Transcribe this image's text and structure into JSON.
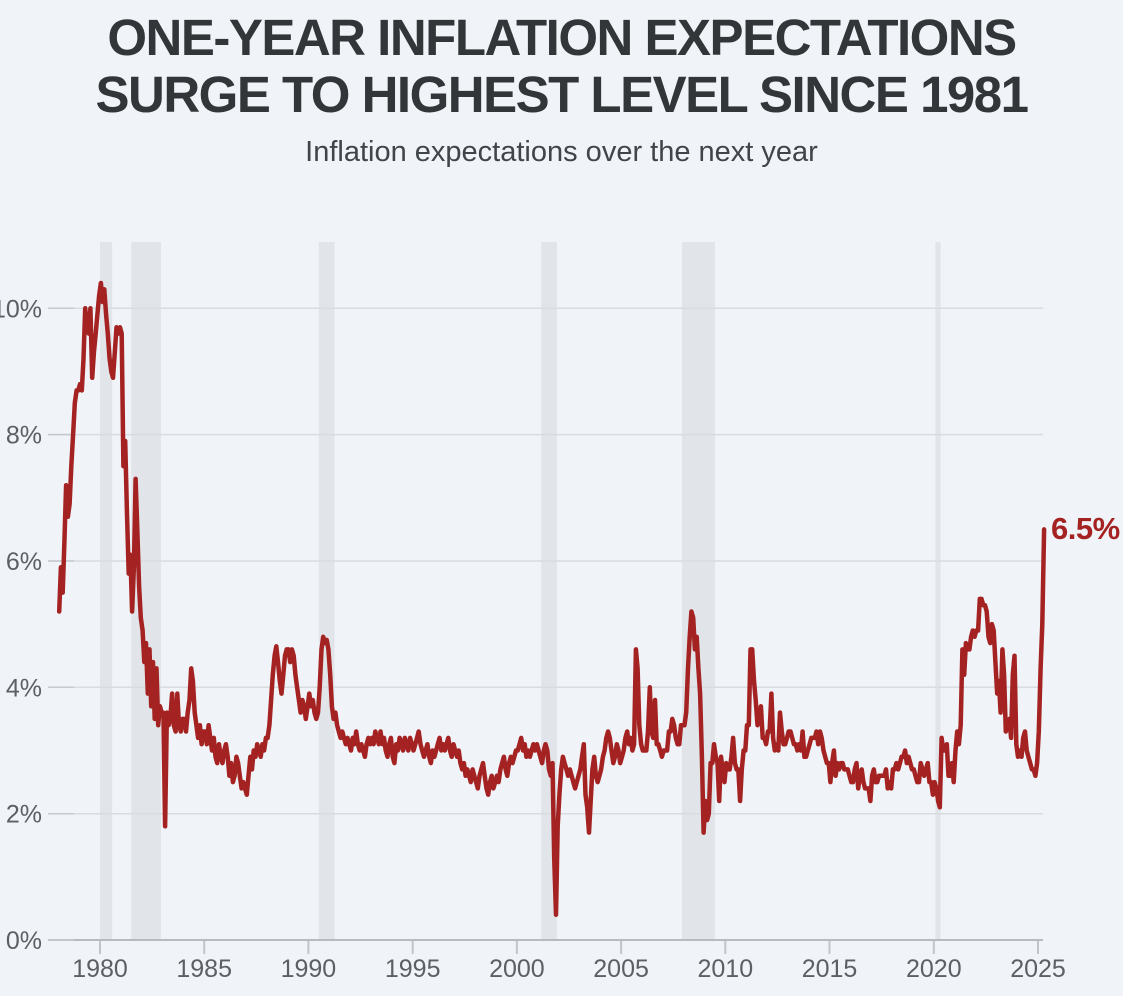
{
  "header": {
    "title_line1": "ONE-YEAR INFLATION EXPECTATIONS",
    "title_line2": "SURGE TO HIGHEST LEVEL SINCE 1981",
    "subtitle": "Inflation expectations over the next year"
  },
  "colors": {
    "background": "#f0f3f7",
    "line": "#a42322",
    "recession_band": "#e1e4e8",
    "gridline": "#d9dcdf",
    "gridline_tick": "#c6c9cc",
    "axis_line": "#b8bbbe",
    "axis_tick": "#c2c5c8",
    "axis_label": "#5c6064",
    "title_text": "#333639",
    "annotation": "#a42322"
  },
  "chart_data": {
    "type": "line",
    "title": "Inflation expectations over the next year",
    "series_name": "One-year inflation expectations",
    "unit": "percent",
    "frequency": "monthly",
    "grid": "horizontal",
    "legend": "none",
    "x_domain": [
      1977.5,
      2025.6
    ],
    "y_domain": [
      0,
      11.05
    ],
    "y_ticks": [
      {
        "value": 0,
        "label": "0%"
      },
      {
        "value": 2,
        "label": "2%"
      },
      {
        "value": 4,
        "label": "4%"
      },
      {
        "value": 6,
        "label": "6%"
      },
      {
        "value": 8,
        "label": "8%"
      },
      {
        "value": 10,
        "label": "10%"
      }
    ],
    "x_ticks": [
      {
        "value": 1980,
        "label": "1980"
      },
      {
        "value": 1985,
        "label": "1985"
      },
      {
        "value": 1990,
        "label": "1990"
      },
      {
        "value": 1995,
        "label": "1995"
      },
      {
        "value": 2000,
        "label": "2000"
      },
      {
        "value": 2005,
        "label": "2005"
      },
      {
        "value": 2010,
        "label": "2010"
      },
      {
        "value": 2015,
        "label": "2015"
      },
      {
        "value": 2020,
        "label": "2020"
      },
      {
        "value": 2025,
        "label": "2025"
      }
    ],
    "recessions": [
      [
        1980.0,
        1980.58
      ],
      [
        1981.5,
        1982.92
      ],
      [
        1990.5,
        1991.25
      ],
      [
        2001.17,
        2001.92
      ],
      [
        2007.92,
        2009.5
      ],
      [
        2020.08,
        2020.33
      ]
    ],
    "end_annotation": {
      "label": "6.5%",
      "value": 6.5,
      "x": 2025.29
    },
    "start_year": 1978,
    "values_by_year": {
      "1978": [
        5.2,
        5.9,
        5.5,
        6.3,
        7.2,
        6.7,
        6.9,
        7.5,
        8.0,
        8.5,
        8.7,
        8.7
      ],
      "1979": [
        8.8,
        8.7,
        9.2,
        10.0,
        9.7,
        9.6,
        10.0,
        8.9,
        9.3,
        9.6,
        9.9,
        10.2
      ],
      "1980": [
        10.4,
        10.1,
        10.3,
        9.9,
        9.6,
        9.2,
        9.0,
        8.9,
        9.3,
        9.7,
        9.6,
        9.7
      ],
      "1981": [
        9.6,
        7.5,
        7.9,
        6.8,
        5.8,
        6.1,
        5.2,
        5.9,
        7.3,
        6.5,
        5.6,
        5.1
      ],
      "1982": [
        4.9,
        4.4,
        4.7,
        3.9,
        4.6,
        3.7,
        4.4,
        3.5,
        4.3,
        3.4,
        3.7,
        3.6
      ],
      "1983": [
        3.6,
        1.8,
        3.6,
        3.4,
        3.5,
        3.9,
        3.4,
        3.3,
        3.9,
        3.4,
        3.3,
        3.5
      ],
      "1984": [
        3.5,
        3.3,
        3.6,
        3.8,
        4.3,
        4.1,
        3.6,
        3.4,
        3.2,
        3.4,
        3.1,
        3.3
      ],
      "1985": [
        3.3,
        3.1,
        3.4,
        3.2,
        3.0,
        3.2,
        2.9,
        2.8,
        3.1,
        2.9,
        2.8,
        3.0
      ],
      "1986": [
        3.1,
        2.9,
        2.6,
        2.8,
        2.5,
        2.6,
        2.9,
        2.8,
        2.6,
        2.4,
        2.5,
        2.4
      ],
      "1987": [
        2.3,
        2.6,
        2.9,
        2.7,
        3.0,
        2.9,
        3.1,
        3.0,
        2.9,
        3.1,
        3.0,
        3.2
      ],
      "1988": [
        3.2,
        3.4,
        3.8,
        4.2,
        4.5,
        4.65,
        4.4,
        4.1,
        3.9,
        4.2,
        4.5,
        4.6
      ],
      "1989": [
        4.6,
        4.4,
        4.6,
        4.5,
        4.2,
        4.0,
        3.8,
        3.6,
        3.8,
        3.7,
        3.5,
        3.7
      ],
      "1990": [
        3.9,
        3.7,
        3.8,
        3.6,
        3.5,
        3.6,
        4.0,
        4.6,
        4.8,
        4.7,
        4.75,
        4.6
      ],
      "1991": [
        4.2,
        3.7,
        3.5,
        3.6,
        3.4,
        3.3,
        3.2,
        3.3,
        3.2,
        3.1,
        3.2,
        3.1
      ],
      "1992": [
        3.0,
        3.2,
        3.1,
        3.3,
        3.1,
        3.0,
        3.1,
        3.0,
        2.9,
        3.1,
        3.2,
        3.1
      ],
      "1993": [
        3.2,
        3.1,
        3.3,
        3.2,
        3.1,
        3.3,
        3.1,
        3.2,
        3.0,
        2.9,
        3.1,
        3.2
      ],
      "1994": [
        2.9,
        2.8,
        3.1,
        3.0,
        3.2,
        3.1,
        3.0,
        3.2,
        3.1,
        3.0,
        3.2,
        3.1
      ],
      "1995": [
        3.0,
        3.1,
        3.2,
        3.3,
        3.1,
        3.0,
        2.9,
        3.0,
        3.1,
        2.9,
        2.8,
        3.0
      ],
      "1996": [
        2.9,
        3.0,
        3.1,
        3.2,
        3.0,
        3.1,
        3.0,
        3.1,
        3.2,
        3.0,
        2.9,
        3.1
      ],
      "1997": [
        3.0,
        2.9,
        3.0,
        2.8,
        2.7,
        2.8,
        2.6,
        2.7,
        2.6,
        2.5,
        2.7,
        2.6
      ],
      "1998": [
        2.5,
        2.4,
        2.6,
        2.7,
        2.8,
        2.6,
        2.4,
        2.3,
        2.5,
        2.6,
        2.4,
        2.5
      ],
      "1999": [
        2.6,
        2.5,
        2.7,
        2.8,
        2.9,
        2.7,
        2.6,
        2.8,
        2.9,
        2.8,
        2.9,
        3.0
      ],
      "2000": [
        3.0,
        3.1,
        3.2,
        3.0,
        3.1,
        2.9,
        3.0,
        2.9,
        3.0,
        3.1,
        3.0,
        3.1
      ],
      "2001": [
        3.0,
        2.9,
        2.8,
        3.0,
        3.1,
        3.0,
        2.7,
        2.6,
        2.8,
        1.3,
        0.4,
        1.8
      ],
      "2002": [
        2.3,
        2.7,
        2.9,
        2.8,
        2.7,
        2.6,
        2.7,
        2.6,
        2.5,
        2.4,
        2.5,
        2.6
      ],
      "2003": [
        2.7,
        2.9,
        3.1,
        2.3,
        2.1,
        1.7,
        2.2,
        2.7,
        2.9,
        2.6,
        2.5,
        2.6
      ],
      "2004": [
        2.7,
        2.9,
        3.0,
        3.2,
        3.3,
        3.2,
        3.0,
        2.8,
        2.9,
        3.1,
        3.0,
        2.8
      ],
      "2005": [
        2.9,
        3.0,
        3.2,
        3.3,
        3.1,
        3.2,
        3.0,
        3.1,
        4.6,
        4.3,
        3.4,
        3.1
      ],
      "2006": [
        3.0,
        3.0,
        3.0,
        3.3,
        4.0,
        3.3,
        3.2,
        3.8,
        3.1,
        3.1,
        3.0,
        2.9
      ],
      "2007": [
        3.0,
        3.0,
        3.0,
        3.3,
        3.3,
        3.5,
        3.4,
        3.2,
        3.1,
        3.1,
        3.4,
        3.4
      ],
      "2008": [
        3.4,
        3.6,
        4.3,
        4.8,
        5.2,
        5.1,
        4.6,
        4.8,
        4.3,
        3.9,
        2.9,
        1.7
      ],
      "2009": [
        2.2,
        1.9,
        2.0,
        2.8,
        2.8,
        3.1,
        2.9,
        2.8,
        2.2,
        2.9,
        2.7,
        2.5
      ],
      "2010": [
        2.8,
        2.7,
        2.7,
        2.9,
        3.2,
        2.8,
        2.7,
        2.7,
        2.2,
        2.7,
        3.0,
        3.0
      ],
      "2011": [
        3.4,
        3.4,
        4.6,
        4.6,
        4.1,
        3.8,
        3.4,
        3.5,
        3.7,
        3.2,
        3.2,
        3.1
      ],
      "2012": [
        3.3,
        3.3,
        3.9,
        3.2,
        3.0,
        3.1,
        3.0,
        3.6,
        3.3,
        3.1,
        3.1,
        3.2
      ],
      "2013": [
        3.3,
        3.3,
        3.2,
        3.1,
        3.1,
        3.0,
        3.1,
        3.0,
        3.3,
        2.9,
        2.9,
        3.0
      ],
      "2014": [
        3.1,
        3.2,
        3.2,
        3.2,
        3.3,
        3.1,
        3.3,
        3.2,
        3.0,
        2.9,
        2.8,
        2.8
      ],
      "2015": [
        2.5,
        2.8,
        3.0,
        2.6,
        2.8,
        2.7,
        2.8,
        2.8,
        2.7,
        2.7,
        2.7,
        2.6
      ],
      "2016": [
        2.5,
        2.5,
        2.7,
        2.8,
        2.4,
        2.6,
        2.7,
        2.5,
        2.4,
        2.4,
        2.4,
        2.2
      ],
      "2017": [
        2.6,
        2.7,
        2.5,
        2.5,
        2.6,
        2.6,
        2.6,
        2.6,
        2.7,
        2.4,
        2.5,
        2.4
      ],
      "2018": [
        2.7,
        2.7,
        2.8,
        2.7,
        2.8,
        2.9,
        2.9,
        3.0,
        2.8,
        2.9,
        2.8,
        2.7
      ],
      "2019": [
        2.7,
        2.6,
        2.5,
        2.5,
        2.8,
        2.7,
        2.6,
        2.7,
        2.8,
        2.5,
        2.5,
        2.3
      ],
      "2020": [
        2.5,
        2.4,
        2.2,
        2.1,
        3.2,
        3.0,
        3.0,
        3.1,
        2.6,
        2.6,
        2.8,
        2.5
      ],
      "2021": [
        3.0,
        3.3,
        3.1,
        3.4,
        4.6,
        4.2,
        4.7,
        4.6,
        4.6,
        4.8,
        4.9,
        4.8
      ],
      "2022": [
        4.9,
        4.9,
        5.4,
        5.4,
        5.3,
        5.3,
        5.2,
        4.8,
        4.7,
        5.0,
        4.9,
        4.4
      ],
      "2023": [
        3.9,
        4.1,
        3.6,
        4.6,
        4.2,
        3.3,
        3.4,
        3.5,
        3.2,
        4.2,
        4.5,
        3.1
      ],
      "2024": [
        2.9,
        3.0,
        2.9,
        3.2,
        3.3,
        3.0,
        2.9,
        2.8,
        2.7,
        2.7,
        2.6,
        2.8
      ],
      "2025": [
        3.3,
        4.3,
        5.0,
        6.5
      ]
    }
  }
}
